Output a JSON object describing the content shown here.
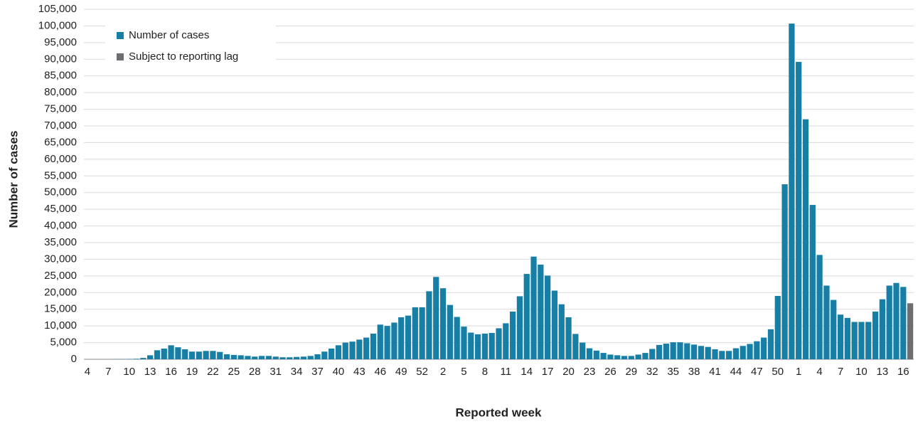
{
  "chart_data": {
    "type": "bar",
    "x_label": "Reported week",
    "y_label": "Number of cases",
    "legend": "top-left",
    "grid": true,
    "categories": [
      "4",
      null,
      null,
      "7",
      null,
      null,
      "10",
      null,
      null,
      "13",
      null,
      null,
      "16",
      null,
      null,
      "19",
      null,
      null,
      "22",
      null,
      null,
      "25",
      null,
      null,
      "28",
      null,
      null,
      "31",
      null,
      null,
      "34",
      null,
      null,
      "37",
      null,
      null,
      "40",
      null,
      null,
      "43",
      null,
      null,
      "46",
      null,
      null,
      "49",
      null,
      null,
      "52",
      null,
      null,
      "2",
      null,
      null,
      "5",
      null,
      null,
      "8",
      null,
      null,
      "11",
      null,
      null,
      "14",
      null,
      null,
      "17",
      null,
      null,
      "20",
      null,
      null,
      "23",
      null,
      null,
      "26",
      null,
      null,
      "29",
      null,
      null,
      "32",
      null,
      null,
      "35",
      null,
      null,
      "38",
      null,
      null,
      "41",
      null,
      null,
      "44",
      null,
      null,
      "47",
      null,
      null,
      "50",
      null,
      null,
      "1",
      null,
      null,
      "4",
      null,
      null,
      "7",
      null,
      null,
      "10",
      null,
      null,
      "13",
      null,
      null,
      "16",
      null
    ],
    "series": [
      {
        "name": "Number of cases",
        "color": "#177fa6",
        "values": [
          0,
          0,
          0,
          0,
          50,
          50,
          100,
          150,
          400,
          1200,
          2700,
          3200,
          4200,
          3600,
          3000,
          2300,
          2300,
          2500,
          2500,
          2200,
          1500,
          1300,
          1200,
          1000,
          800,
          1000,
          1000,
          800,
          600,
          600,
          700,
          800,
          1000,
          1500,
          2300,
          3200,
          4200,
          5000,
          5300,
          5900,
          6500,
          7700,
          10400,
          10000,
          11000,
          12600,
          13100,
          15600,
          15600,
          20400,
          24700,
          21300,
          16300,
          12700,
          9800,
          8000,
          7500,
          7700,
          7900,
          9300,
          10800,
          14300,
          18900,
          25600,
          30800,
          28400,
          25100,
          20600,
          16500,
          12600,
          7600,
          5000,
          3300,
          2600,
          1900,
          1400,
          1200,
          1000,
          1000,
          1400,
          1900,
          3100,
          4300,
          4700,
          5100,
          5100,
          4800,
          4400,
          4000,
          3700,
          3000,
          2500,
          2500,
          3300,
          4000,
          4600,
          5400,
          6500,
          9000,
          19000,
          52500,
          100700,
          89200,
          72000,
          46300,
          31300,
          22100,
          17800,
          13400,
          12400,
          11200,
          11200,
          11200,
          14300,
          18000,
          22100,
          22900,
          21700,
          null
        ]
      },
      {
        "name": "Subject to reporting lag",
        "color": "#6d6e71",
        "values": [
          null,
          null,
          null,
          null,
          null,
          null,
          null,
          null,
          null,
          null,
          null,
          null,
          null,
          null,
          null,
          null,
          null,
          null,
          null,
          null,
          null,
          null,
          null,
          null,
          null,
          null,
          null,
          null,
          null,
          null,
          null,
          null,
          null,
          null,
          null,
          null,
          null,
          null,
          null,
          null,
          null,
          null,
          null,
          null,
          null,
          null,
          null,
          null,
          null,
          null,
          null,
          null,
          null,
          null,
          null,
          null,
          null,
          null,
          null,
          null,
          null,
          null,
          null,
          null,
          null,
          null,
          null,
          null,
          null,
          null,
          null,
          null,
          null,
          null,
          null,
          null,
          null,
          null,
          null,
          null,
          null,
          null,
          null,
          null,
          null,
          null,
          null,
          null,
          null,
          null,
          null,
          null,
          null,
          null,
          null,
          null,
          null,
          null,
          null,
          null,
          null,
          null,
          null,
          null,
          null,
          null,
          null,
          null,
          null,
          null,
          null,
          null,
          null,
          null,
          null,
          null,
          null,
          null,
          16800
        ]
      }
    ],
    "ylim": [
      0,
      105000
    ],
    "yticks": [
      0,
      {
        "value": 5000,
        "label": "5,000"
      },
      {
        "value": 10000,
        "label": "10,000"
      },
      {
        "value": 15000,
        "label": "15,000"
      },
      {
        "value": 20000,
        "label": "20,000"
      },
      {
        "value": 25000,
        "label": "25,000"
      },
      {
        "value": 30000,
        "label": "30,000"
      },
      {
        "value": 35000,
        "label": "35,000"
      },
      {
        "value": 40000,
        "label": "40,000"
      },
      {
        "value": 45000,
        "label": "45,000"
      },
      {
        "value": 50000,
        "label": "50,000"
      },
      {
        "value": 55000,
        "label": "55,000"
      },
      {
        "value": 60000,
        "label": "60,000"
      },
      {
        "value": 65000,
        "label": "65,000"
      },
      {
        "value": 70000,
        "label": "70,000"
      },
      {
        "value": 75000,
        "label": "75,000"
      },
      {
        "value": 80000,
        "label": "80,000"
      },
      {
        "value": 85000,
        "label": "85,000"
      },
      {
        "value": 90000,
        "label": "90,000"
      },
      {
        "value": 95000,
        "label": "95,000"
      },
      {
        "value": 100000,
        "label": "100,000"
      },
      {
        "value": 105000,
        "label": "105,000"
      }
    ]
  }
}
